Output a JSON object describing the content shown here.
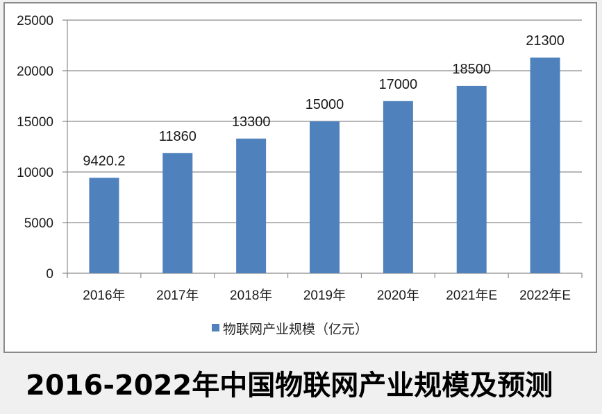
{
  "title": "2016-2022年中国物联网产业规模及预测",
  "colors": {
    "bar": "#4f81bd",
    "grid": "#8c8c8c",
    "frame_border": "#8a8a8a",
    "page_background": "#f0f0f0",
    "plot_background": "#ffffff"
  },
  "legend": {
    "label": "物联网产业规模（亿元）",
    "swatch_color": "#4f81bd"
  },
  "y_axis": {
    "ticks": [
      "0",
      "5000",
      "10000",
      "15000",
      "20000",
      "25000"
    ]
  },
  "chart_data": {
    "type": "bar",
    "title": "2016-2022年中国物联网产业规模及预测",
    "categories": [
      "2016年",
      "2017年",
      "2018年",
      "2019年",
      "2020年",
      "2021年E",
      "2022年E"
    ],
    "series": [
      {
        "name": "物联网产业规模（亿元）",
        "values": [
          9420.2,
          11860,
          13300,
          15000,
          17000,
          18500,
          21300
        ],
        "labels": [
          "9420.2",
          "11860",
          "13300",
          "15000",
          "17000",
          "18500",
          "21300"
        ],
        "color": "#4f81bd"
      }
    ],
    "xlabel": "",
    "ylabel": "",
    "ylim": [
      0,
      25000
    ],
    "yticks": [
      0,
      5000,
      10000,
      15000,
      20000,
      25000
    ],
    "grid": true,
    "legend_position": "bottom"
  }
}
